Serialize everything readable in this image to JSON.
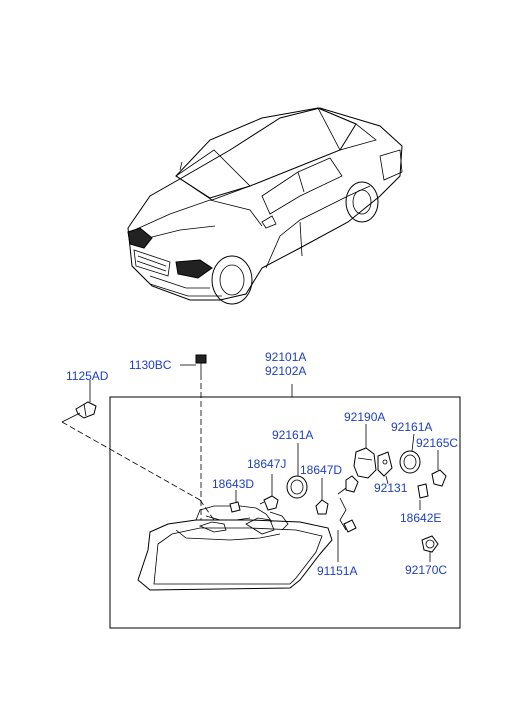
{
  "diagram": {
    "labels": {
      "bolt_1125AD": "1125AD",
      "screw_1130BC": "1130BC",
      "headlamp_assy_92101A": "92101A",
      "headlamp_assy_92102A": "92102A",
      "bulb_92161A_left": "92161A",
      "bulb_92161A_right": "92161A",
      "socket_92190A": "92190A",
      "cap_92165C": "92165C",
      "bulb_18647J": "18647J",
      "bulb_18647D": "18647D",
      "bulb_18643D": "18643D",
      "bracket_92131": "92131",
      "bulb_18642E": "18642E",
      "wiring_91151A": "91151A",
      "socket_92170C": "92170C"
    },
    "colors": {
      "label": "#1f3fbf",
      "line": "#000000",
      "background": "#ffffff"
    }
  }
}
